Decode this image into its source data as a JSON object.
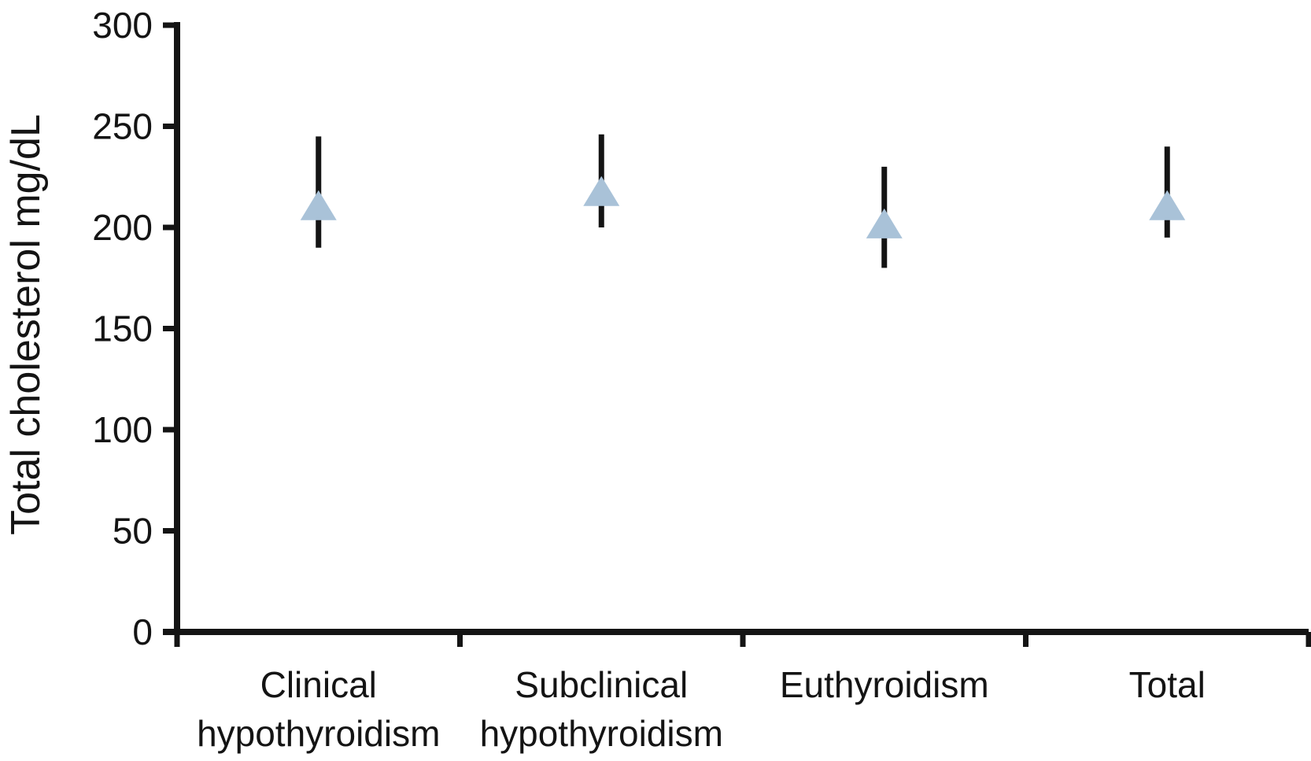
{
  "figure": {
    "background": "#ffffff"
  },
  "chart_data": {
    "type": "scatter",
    "subtype": "means-with-error-bars",
    "title": "",
    "xlabel": "",
    "ylabel": "Total cholesterol mg/dL",
    "ylim": [
      0,
      300
    ],
    "yticks": [
      0,
      50,
      100,
      150,
      200,
      250,
      300
    ],
    "grid": false,
    "legend_position": "none",
    "marker": "triangle-up",
    "colors": {
      "marker_fill": "#a9c2d8",
      "axis": "#141414",
      "error_bar": "#141414",
      "text": "#141414"
    },
    "categories": [
      "Clinical hypothyroidism",
      "Subclinical hypothyroidism",
      "Euthyroidism",
      "Total"
    ],
    "category_label_lines": [
      [
        "Clinical",
        "hypothyroidism"
      ],
      [
        "Subclinical",
        "hypothyroidism"
      ],
      [
        "Euthyroidism"
      ],
      [
        "Total"
      ]
    ],
    "series": [
      {
        "name": "Total cholesterol mg/dL",
        "means": [
          211,
          218,
          202,
          211
        ],
        "upper": [
          245,
          246,
          230,
          240
        ],
        "lower": [
          190,
          200,
          180,
          195
        ]
      }
    ]
  }
}
